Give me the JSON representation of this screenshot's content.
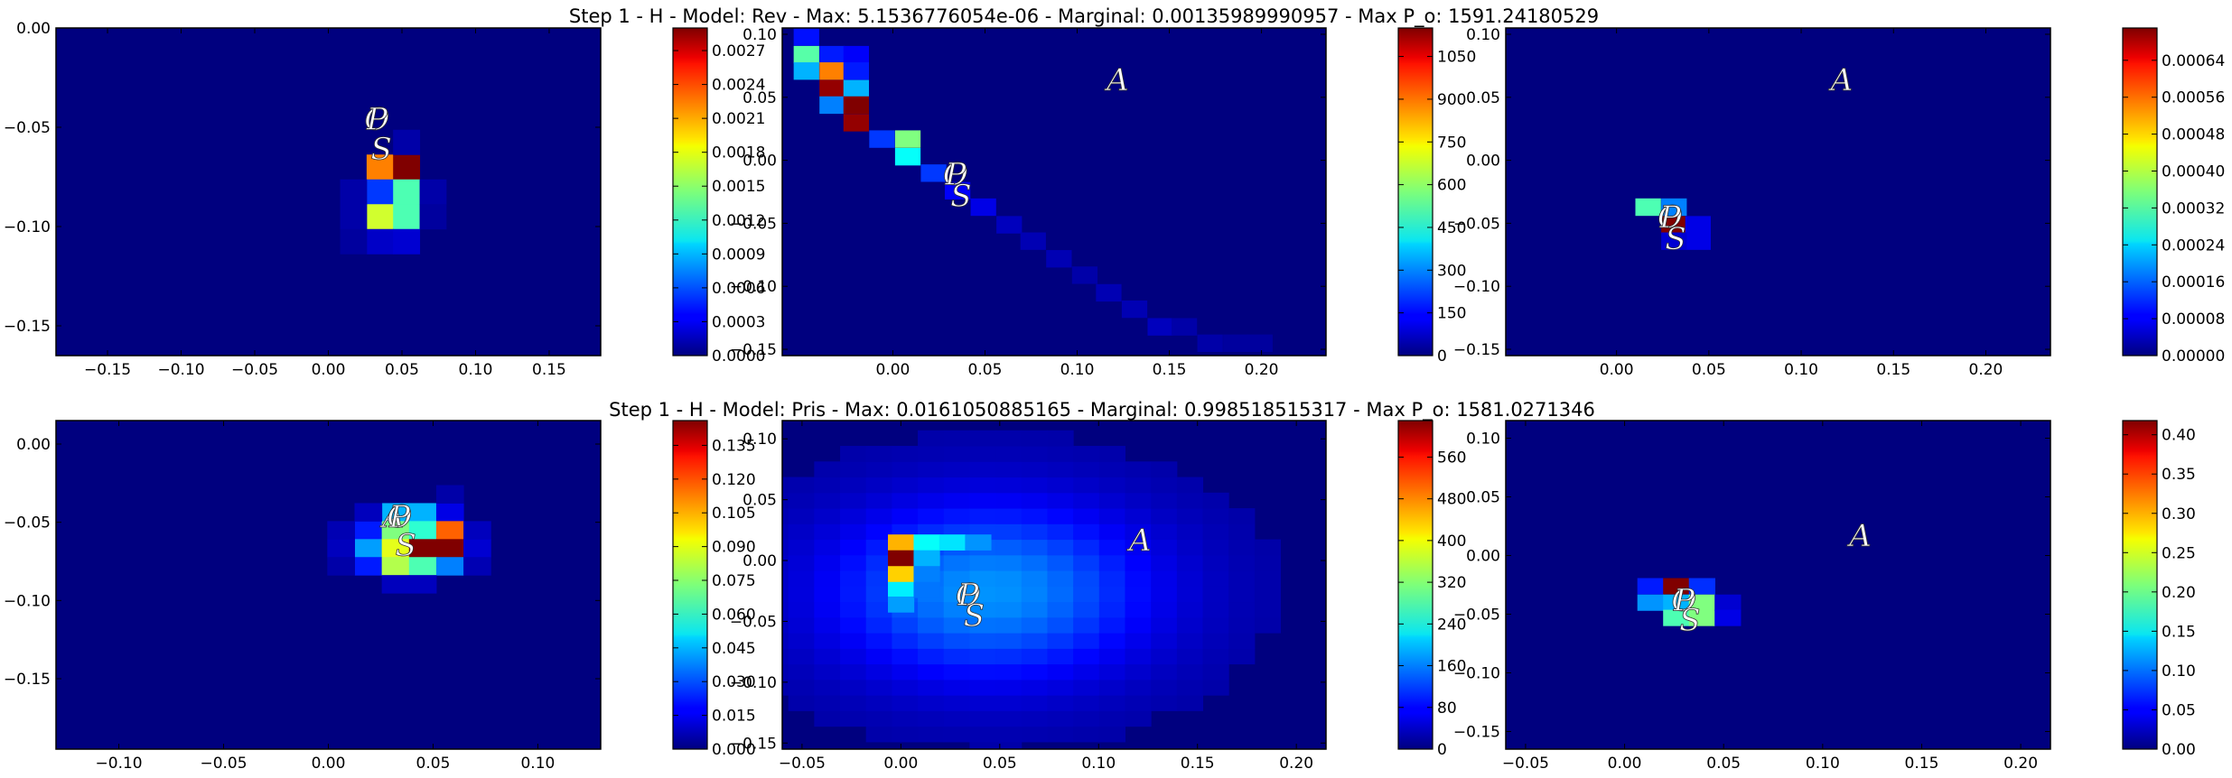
{
  "colors": {
    "background": "#ffffff",
    "heatmap_base": "#00007f",
    "colormap": "jet"
  },
  "chart_data": [
    {
      "type": "heatmap",
      "title": "Step 1 - H - Model: Rev - Max: 5.1536776054e-06 - Marginal: 0.00135989990957 - Max P_o: 1591.24180529",
      "panels": [
        {
          "xticks": [
            "−0.15",
            "−0.10",
            "−0.05",
            "0.00",
            "0.05",
            "0.10",
            "0.15"
          ],
          "yticks": [
            "0.00",
            "−0.05",
            "−0.10",
            "−0.15"
          ],
          "xlim": [
            -0.185,
            0.185
          ],
          "ylim": [
            -0.165,
            0.0
          ],
          "cell": [
            0.018,
            0.0125
          ],
          "cells": [
            [
              0.035,
              -0.07,
              0.75
            ],
            [
              0.053,
              -0.07,
              1.0
            ],
            [
              0.035,
              -0.0825,
              0.18
            ],
            [
              0.053,
              -0.0825,
              0.45
            ],
            [
              0.035,
              -0.095,
              0.58
            ],
            [
              0.053,
              -0.095,
              0.45
            ],
            [
              0.017,
              -0.0825,
              0.04
            ],
            [
              0.071,
              -0.0825,
              0.04
            ],
            [
              0.017,
              -0.095,
              0.04
            ],
            [
              0.071,
              -0.095,
              0.03
            ],
            [
              0.035,
              -0.1075,
              0.07
            ],
            [
              0.053,
              -0.1075,
              0.08
            ],
            [
              0.053,
              -0.0575,
              0.04
            ],
            [
              0.017,
              -0.1075,
              0.03
            ]
          ],
          "markers": [
            {
              "label": "O",
              "x": 0.033,
              "y": -0.047
            },
            {
              "label": "P",
              "x": 0.033,
              "y": -0.047
            },
            {
              "label": "S",
              "x": 0.036,
              "y": -0.062
            }
          ],
          "colorbar": {
            "ticks": [
              "0.0000",
              "0.0003",
              "0.0006",
              "0.0009",
              "0.0012",
              "0.0015",
              "0.0018",
              "0.0021",
              "0.0024",
              "0.0027"
            ],
            "vmax": 0.0029
          }
        },
        {
          "xticks": [
            "0.00",
            "0.05",
            "0.10",
            "0.15",
            "0.20"
          ],
          "yticks": [
            "0.10",
            "0.05",
            "0.00",
            "−0.05",
            "−0.10",
            "−0.15"
          ],
          "xlim": [
            -0.06,
            0.235
          ],
          "ylim": [
            -0.155,
            0.105
          ],
          "cell": [
            0.0136,
            0.0135
          ],
          "cells": [
            [
              -0.047,
              0.098,
              0.14
            ],
            [
              -0.047,
              0.084,
              0.46
            ],
            [
              -0.047,
              0.071,
              0.3
            ],
            [
              -0.033,
              0.084,
              0.15
            ],
            [
              -0.02,
              0.084,
              0.12
            ],
            [
              -0.033,
              0.071,
              0.75
            ],
            [
              -0.02,
              0.071,
              0.15
            ],
            [
              -0.033,
              0.057,
              0.98
            ],
            [
              -0.02,
              0.057,
              0.3
            ],
            [
              -0.033,
              0.044,
              0.25
            ],
            [
              -0.02,
              0.044,
              1.0
            ],
            [
              -0.02,
              0.03,
              0.98
            ],
            [
              -0.006,
              0.017,
              0.18
            ],
            [
              0.008,
              0.017,
              0.5
            ],
            [
              0.008,
              0.003,
              0.38
            ],
            [
              0.022,
              -0.01,
              0.18
            ],
            [
              0.035,
              -0.024,
              0.12
            ],
            [
              0.049,
              -0.037,
              0.1
            ],
            [
              0.063,
              -0.051,
              0.06
            ],
            [
              0.076,
              -0.064,
              0.05
            ],
            [
              0.09,
              -0.078,
              0.05
            ],
            [
              0.104,
              -0.091,
              0.04
            ],
            [
              0.117,
              -0.105,
              0.05
            ],
            [
              0.131,
              -0.118,
              0.05
            ],
            [
              0.145,
              -0.132,
              0.06
            ],
            [
              0.158,
              -0.132,
              0.04
            ],
            [
              0.172,
              -0.145,
              0.04
            ],
            [
              0.186,
              -0.145,
              0.03
            ],
            [
              0.199,
              -0.145,
              0.03
            ]
          ],
          "markers": [
            {
              "label": "A",
              "x": 0.122,
              "y": 0.062
            },
            {
              "label": "O",
              "x": 0.034,
              "y": -0.013
            },
            {
              "label": "P",
              "x": 0.034,
              "y": -0.013
            },
            {
              "label": "S",
              "x": 0.037,
              "y": -0.03
            }
          ],
          "colorbar": {
            "ticks": [
              "0",
              "150",
              "300",
              "450",
              "600",
              "750",
              "900",
              "1050"
            ],
            "vmax": 1150
          }
        },
        {
          "xticks": [
            "0.00",
            "0.05",
            "0.10",
            "0.15",
            "0.20"
          ],
          "yticks": [
            "0.10",
            "0.05",
            "0.00",
            "−0.05",
            "−0.10",
            "−0.15"
          ],
          "xlim": [
            -0.06,
            0.235
          ],
          "ylim": [
            -0.155,
            0.105
          ],
          "cell": [
            0.0136,
            0.0135
          ],
          "cells": [
            [
              0.017,
              -0.037,
              0.45
            ],
            [
              0.031,
              -0.037,
              0.25
            ],
            [
              0.031,
              -0.051,
              1.0
            ],
            [
              0.044,
              -0.051,
              0.1
            ],
            [
              0.044,
              -0.064,
              0.1
            ],
            [
              0.031,
              -0.064,
              0.08
            ]
          ],
          "markers": [
            {
              "label": "A",
              "x": 0.122,
              "y": 0.062
            },
            {
              "label": "O",
              "x": 0.029,
              "y": -0.047
            },
            {
              "label": "P",
              "x": 0.029,
              "y": -0.047
            },
            {
              "label": "S",
              "x": 0.032,
              "y": -0.064
            }
          ],
          "colorbar": {
            "ticks": [
              "0.00000",
              "0.00008",
              "0.00016",
              "0.00024",
              "0.00032",
              "0.00040",
              "0.00048",
              "0.00056",
              "0.00064"
            ],
            "vmax": 0.00071
          }
        }
      ]
    },
    {
      "type": "heatmap",
      "title": "Step 1 - H - Model: Pris - Max: 0.0161050885165 - Marginal: 0.998518515317 - Max P_o: 1581.0271346",
      "panels": [
        {
          "xticks": [
            "−0.10",
            "−0.05",
            "0.00",
            "0.05",
            "0.10"
          ],
          "yticks": [
            "0.00",
            "−0.05",
            "−0.10",
            "−0.15"
          ],
          "xlim": [
            -0.13,
            0.13
          ],
          "ylim": [
            -0.195,
            0.015
          ],
          "cell": [
            0.013,
            0.0115
          ],
          "cells": [
            [
              0.032,
              -0.0435,
              0.3
            ],
            [
              0.045,
              -0.0435,
              0.3
            ],
            [
              0.058,
              -0.0435,
              0.1
            ],
            [
              0.019,
              -0.055,
              0.15
            ],
            [
              0.032,
              -0.055,
              0.5
            ],
            [
              0.045,
              -0.055,
              0.42
            ],
            [
              0.058,
              -0.055,
              0.78
            ],
            [
              0.019,
              -0.0665,
              0.28
            ],
            [
              0.032,
              -0.0665,
              0.6
            ],
            [
              0.045,
              -0.0665,
              1.0
            ],
            [
              0.058,
              -0.0665,
              1.0
            ],
            [
              0.019,
              -0.078,
              0.15
            ],
            [
              0.032,
              -0.078,
              0.55
            ],
            [
              0.045,
              -0.078,
              0.45
            ],
            [
              0.058,
              -0.078,
              0.25
            ],
            [
              0.006,
              -0.0665,
              0.06
            ],
            [
              0.071,
              -0.0665,
              0.08
            ],
            [
              0.006,
              -0.055,
              0.05
            ],
            [
              0.071,
              -0.055,
              0.06
            ],
            [
              0.032,
              -0.0895,
              0.06
            ],
            [
              0.045,
              -0.0895,
              0.06
            ],
            [
              0.019,
              -0.0435,
              0.06
            ],
            [
              0.058,
              -0.032,
              0.04
            ],
            [
              0.006,
              -0.078,
              0.04
            ],
            [
              0.071,
              -0.078,
              0.05
            ]
          ],
          "markers": [
            {
              "label": "A",
              "x": 0.031,
              "y": -0.048
            },
            {
              "label": "O",
              "x": 0.034,
              "y": -0.048
            },
            {
              "label": "P",
              "x": 0.034,
              "y": -0.048
            },
            {
              "label": "S",
              "x": 0.037,
              "y": -0.066
            }
          ],
          "colorbar": {
            "ticks": [
              "0.000",
              "0.015",
              "0.030",
              "0.045",
              "0.060",
              "0.075",
              "0.090",
              "0.105",
              "0.120",
              "0.135"
            ],
            "vmax": 0.146
          }
        },
        {
          "xticks": [
            "−0.05",
            "0.00",
            "0.05",
            "0.10",
            "0.15",
            "0.20"
          ],
          "yticks": [
            "0.10",
            "0.05",
            "0.00",
            "−0.05",
            "−0.10",
            "−0.15"
          ],
          "xlim": [
            -0.06,
            0.215
          ],
          "ylim": [
            -0.155,
            0.115
          ],
          "cell": [
            0.0131,
            0.0128
          ],
          "blob": {
            "cx": 0.045,
            "cy": -0.025,
            "sx": 0.058,
            "sy": 0.052,
            "amp": 0.24
          },
          "cells": [
            [
              0.0,
              0.015,
              0.7
            ],
            [
              0.013,
              0.015,
              0.38
            ],
            [
              0.026,
              0.015,
              0.35
            ],
            [
              0.039,
              0.015,
              0.27
            ],
            [
              0.0,
              0.002,
              1.0
            ],
            [
              0.013,
              0.002,
              0.3
            ],
            [
              0.0,
              -0.011,
              0.67
            ],
            [
              0.013,
              -0.011,
              0.25
            ],
            [
              0.0,
              -0.024,
              0.36
            ],
            [
              0.0,
              -0.036,
              0.28
            ],
            [
              0.013,
              -0.024,
              0.24
            ]
          ],
          "markers": [
            {
              "label": "A",
              "x": 0.121,
              "y": 0.015
            },
            {
              "label": "O",
              "x": 0.034,
              "y": -0.03
            },
            {
              "label": "P",
              "x": 0.034,
              "y": -0.03
            },
            {
              "label": "S",
              "x": 0.037,
              "y": -0.047
            }
          ],
          "colorbar": {
            "ticks": [
              "0",
              "80",
              "160",
              "240",
              "320",
              "400",
              "480",
              "560"
            ],
            "vmax": 630
          }
        },
        {
          "xticks": [
            "−0.05",
            "0.00",
            "0.05",
            "0.10",
            "0.15",
            "0.20"
          ],
          "yticks": [
            "0.10",
            "0.05",
            "0.00",
            "−0.05",
            "−0.10",
            "−0.15"
          ],
          "xlim": [
            -0.06,
            0.215
          ],
          "ylim": [
            -0.165,
            0.115
          ],
          "cell": [
            0.0131,
            0.0135
          ],
          "cells": [
            [
              0.013,
              -0.026,
              0.15
            ],
            [
              0.026,
              -0.026,
              1.0
            ],
            [
              0.039,
              -0.026,
              0.17
            ],
            [
              0.013,
              -0.04,
              0.27
            ],
            [
              0.026,
              -0.04,
              0.3
            ],
            [
              0.039,
              -0.04,
              0.5
            ],
            [
              0.026,
              -0.053,
              0.45
            ],
            [
              0.039,
              -0.053,
              0.5
            ],
            [
              0.052,
              -0.04,
              0.08
            ],
            [
              0.052,
              -0.053,
              0.1
            ]
          ],
          "markers": [
            {
              "label": "A",
              "x": 0.119,
              "y": 0.015
            },
            {
              "label": "O",
              "x": 0.03,
              "y": -0.04
            },
            {
              "label": "P",
              "x": 0.03,
              "y": -0.04
            },
            {
              "label": "S",
              "x": 0.033,
              "y": -0.057
            }
          ],
          "colorbar": {
            "ticks": [
              "0.00",
              "0.05",
              "0.10",
              "0.15",
              "0.20",
              "0.25",
              "0.30",
              "0.35",
              "0.40"
            ],
            "vmax": 0.418
          }
        }
      ]
    }
  ]
}
